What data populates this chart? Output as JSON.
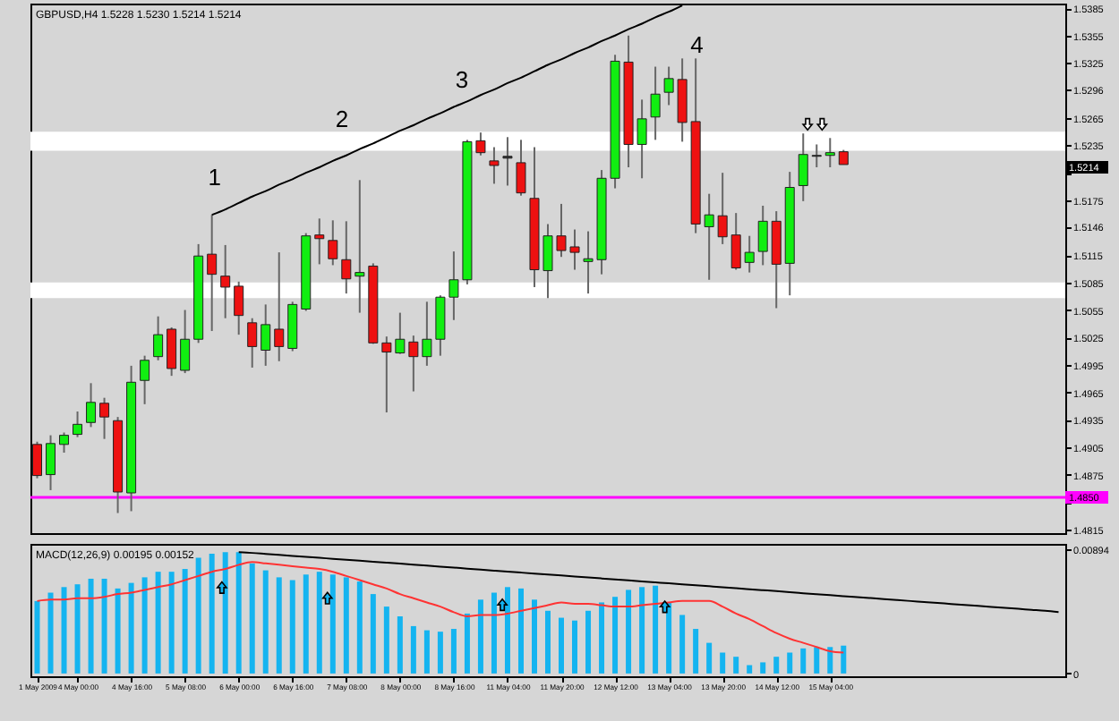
{
  "chart_data": [
    {
      "type": "candlestick",
      "title": "GBPUSD,H4 1.5228 1.5230 1.5214 1.5214",
      "categories": [
        null,
        null,
        null,
        null,
        null,
        null,
        null,
        null,
        null,
        null,
        null,
        null,
        null,
        null,
        null,
        null,
        null,
        null,
        null,
        null,
        null,
        null,
        null,
        null,
        null,
        null,
        null,
        null,
        null,
        null,
        null,
        null,
        null,
        null,
        null,
        null,
        null,
        null,
        null,
        null,
        null,
        null,
        null,
        null,
        null,
        null,
        null,
        null,
        null,
        null,
        null,
        null,
        null,
        null,
        null,
        null,
        null,
        null,
        null,
        null,
        null,
        null,
        null,
        null,
        null,
        null,
        null,
        null,
        null,
        null,
        null,
        null,
        null,
        null,
        null,
        null,
        null
      ],
      "ohlc": [
        [
          1.4908,
          1.4911,
          1.4871,
          1.4874
        ],
        [
          1.4875,
          1.4918,
          1.4858,
          1.4909
        ],
        [
          1.4908,
          1.4921,
          1.4899,
          1.4918
        ],
        [
          1.4919,
          1.4944,
          1.4916,
          1.493
        ],
        [
          1.4932,
          1.4975,
          1.4927,
          1.4954
        ],
        [
          1.4953,
          1.4959,
          1.4914,
          1.4938
        ],
        [
          1.4934,
          1.4938,
          1.4833,
          1.4856
        ],
        [
          1.4855,
          1.4994,
          1.4835,
          1.4976
        ],
        [
          1.4978,
          1.5005,
          1.4952,
          1.5
        ],
        [
          1.5004,
          1.5048,
          1.5,
          1.5028
        ],
        [
          1.5034,
          1.5036,
          1.4983,
          1.4991
        ],
        [
          1.4989,
          1.5055,
          1.4986,
          1.5023
        ],
        [
          1.5023,
          1.5127,
          1.5019,
          1.5114
        ],
        [
          1.5116,
          1.5159,
          1.5032,
          1.5094
        ],
        [
          1.5092,
          1.5126,
          1.5046,
          1.508
        ],
        [
          1.5081,
          1.5086,
          1.5028,
          1.5049
        ],
        [
          1.5041,
          1.5046,
          1.4992,
          1.5015
        ],
        [
          1.5011,
          1.5061,
          1.4994,
          1.5039
        ],
        [
          1.5034,
          1.5118,
          1.4999,
          1.5015
        ],
        [
          1.5013,
          1.5064,
          1.501,
          1.5061
        ],
        [
          1.5056,
          1.5139,
          1.5054,
          1.5136
        ],
        [
          1.5137,
          1.5155,
          1.5105,
          1.5133
        ],
        [
          1.5131,
          1.5153,
          1.5104,
          1.5111
        ],
        [
          1.511,
          1.5152,
          1.5073,
          1.5089
        ],
        [
          1.5092,
          1.5197,
          1.5052,
          1.5096
        ],
        [
          1.5103,
          1.5106,
          1.5018,
          1.5019
        ],
        [
          1.5019,
          1.5026,
          1.4943,
          1.5009
        ],
        [
          1.5008,
          1.5052,
          1.5007,
          1.5023
        ],
        [
          1.502,
          1.5027,
          1.4966,
          1.5004
        ],
        [
          1.5004,
          1.5064,
          1.4994,
          1.5023
        ],
        [
          1.5023,
          1.5071,
          1.5005,
          1.5069
        ],
        [
          1.5069,
          1.5119,
          1.5044,
          1.5088
        ],
        [
          1.5088,
          1.5241,
          1.5083,
          1.5239
        ],
        [
          1.524,
          1.5249,
          1.5224,
          1.5227
        ],
        [
          1.5218,
          1.5233,
          1.5193,
          1.5213
        ],
        [
          1.5223,
          1.5244,
          1.5191,
          1.5221
        ],
        [
          1.5216,
          1.5241,
          1.518,
          1.5183
        ],
        [
          1.5177,
          1.5233,
          1.508,
          1.5099
        ],
        [
          1.5098,
          1.5149,
          1.5068,
          1.5136
        ],
        [
          1.5136,
          1.5171,
          1.5113,
          1.512
        ],
        [
          1.5124,
          1.5143,
          1.5099,
          1.5118
        ],
        [
          1.5108,
          1.5141,
          1.5073,
          1.5111
        ],
        [
          1.511,
          1.5208,
          1.5094,
          1.5199
        ],
        [
          1.5199,
          1.5334,
          1.5188,
          1.5327
        ],
        [
          1.5326,
          1.5355,
          1.5211,
          1.5236
        ],
        [
          1.5236,
          1.5285,
          1.5199,
          1.5264
        ],
        [
          1.5266,
          1.5321,
          1.5241,
          1.5291
        ],
        [
          1.5293,
          1.5321,
          1.5279,
          1.5308
        ],
        [
          1.5307,
          1.533,
          1.5239,
          1.526
        ],
        [
          1.5261,
          1.533,
          1.5139,
          1.5149
        ],
        [
          1.5146,
          1.5182,
          1.5088,
          1.5159
        ],
        [
          1.5158,
          1.5205,
          1.5127,
          1.5135
        ],
        [
          1.5137,
          1.5161,
          1.5099,
          1.5101
        ],
        [
          1.5107,
          1.5136,
          1.5096,
          1.5118
        ],
        [
          1.5119,
          1.5169,
          1.5104,
          1.5152
        ],
        [
          1.5152,
          1.5163,
          1.5057,
          1.5105
        ],
        [
          1.5106,
          1.5206,
          1.5071,
          1.5189
        ],
        [
          1.5191,
          1.5248,
          1.5174,
          1.5225
        ],
        [
          1.5223,
          1.5236,
          1.5211,
          1.5224
        ],
        [
          1.5224,
          1.5243,
          1.5211,
          1.5227
        ],
        [
          1.5228,
          1.523,
          1.5214,
          1.5214
        ],
        null,
        null,
        null,
        null,
        null,
        null,
        null,
        null,
        null,
        null,
        null,
        null,
        null,
        null,
        null,
        null
      ],
      "colors": [
        "#ee1111",
        "#11ee11",
        "#11ee11",
        "#11ee11",
        "#11ee11",
        "#ee1111",
        "#ee1111",
        "#11ee11",
        "#11ee11",
        "#11ee11",
        "#ee1111",
        "#11ee11",
        "#11ee11",
        "#ee1111",
        "#ee1111",
        "#ee1111",
        "#ee1111",
        "#11ee11",
        "#ee1111",
        "#11ee11",
        "#11ee11",
        "#ee1111",
        "#ee1111",
        "#ee1111",
        "#11ee11",
        "#ee1111",
        "#ee1111",
        "#11ee11",
        "#ee1111",
        "#11ee11",
        "#11ee11",
        "#11ee11",
        "#11ee11",
        "#ee1111",
        "#ee1111",
        "#333333",
        "#ee1111",
        "#ee1111",
        "#11ee11",
        "#ee1111",
        "#ee1111",
        "#11ee11",
        "#11ee11",
        "#11ee11",
        "#ee1111",
        "#11ee11",
        "#11ee11",
        "#11ee11",
        "#ee1111",
        "#ee1111",
        "#11ee11",
        "#ee1111",
        "#ee1111",
        "#11ee11",
        "#11ee11",
        "#ee1111",
        "#11ee11",
        "#11ee11",
        "#333333",
        "#11ee11",
        "#ee1111",
        null,
        null,
        null,
        null,
        null,
        null,
        null,
        null,
        null,
        null,
        null,
        null,
        null,
        null,
        null,
        null
      ],
      "series": [
        {
          "type": "line",
          "color": "#000000",
          "values": [
            null,
            null,
            null,
            null,
            null,
            null,
            null,
            null,
            null,
            null,
            null,
            null,
            null,
            1.5159,
            1.5165,
            1.5172,
            1.5179,
            1.5185,
            1.5192,
            1.5198,
            1.5205,
            1.5211,
            1.5218,
            1.5224,
            1.5231,
            1.5237,
            1.5244,
            1.5251,
            1.5257,
            1.5264,
            1.527,
            1.5277,
            1.5283,
            1.529,
            1.5296,
            1.5303,
            1.5309,
            1.5316,
            1.5323,
            1.5329,
            1.5336,
            1.5342,
            1.5349,
            1.5355,
            1.5362,
            1.5368,
            1.5375,
            1.5381,
            1.5388,
            null,
            null,
            null,
            null,
            null,
            null,
            null,
            null,
            null,
            null,
            null,
            null,
            null,
            null,
            null,
            null,
            null,
            null,
            null,
            null,
            null,
            null,
            null,
            null,
            null,
            null,
            null,
            null
          ]
        }
      ],
      "ylim": [
        1.4811,
        1.539
      ],
      "yticks": [
        1.5385,
        1.5355,
        1.5325,
        1.5296,
        1.5265,
        1.5235,
        {
          "value": 1.5205,
          "label": null
        },
        1.5175,
        1.5146,
        1.5115,
        1.5085,
        1.5055,
        1.5025,
        1.4995,
        1.4965,
        1.4935,
        1.4905,
        1.4875,
        {
          "value": 1.4845,
          "label": null
        },
        1.4815
      ],
      "tick_labels": "y",
      "ref_lines": [
        {
          "axis": "y",
          "value": 1.485,
          "label": "1.4850",
          "color": "#ff00ff"
        }
      ],
      "bands": [
        {
          "axis": "y",
          "from": 1.5229,
          "to": 1.525,
          "color": "#ffffff"
        },
        {
          "axis": "y",
          "from": 1.5068,
          "to": 1.5085,
          "color": "#ffffff"
        }
      ],
      "annotations": [
        "1",
        "2",
        "3",
        "4",
        "1.5214"
      ]
    },
    {
      "type": "bar",
      "title": "MACD(12,26,9) 0.00195 0.00152",
      "categories": [
        "1 May 2009",
        null,
        null,
        "4 May 00:00",
        null,
        null,
        null,
        "4 May 16:00",
        null,
        null,
        null,
        "5 May 08:00",
        null,
        null,
        null,
        "6 May 00:00",
        null,
        null,
        null,
        "6 May 16:00",
        null,
        null,
        null,
        "7 May 08:00",
        null,
        null,
        null,
        "8 May 00:00",
        null,
        null,
        null,
        "8 May 16:00",
        null,
        null,
        null,
        "11 May 04:00",
        null,
        null,
        null,
        "11 May 20:00",
        null,
        null,
        null,
        "12 May 12:00",
        null,
        null,
        null,
        "13 May 04:00",
        null,
        null,
        null,
        "13 May 20:00",
        null,
        null,
        null,
        "14 May 12:00",
        null,
        null,
        null,
        "15 May 04:00",
        null,
        null,
        null,
        null,
        null,
        null,
        null,
        null,
        null,
        null,
        null,
        null,
        null,
        null,
        null,
        null,
        null
      ],
      "series": [
        {
          "color": "#14b4f0",
          "values": [
            0.0052,
            0.0058,
            0.0062,
            0.0064,
            0.0068,
            0.0068,
            0.0061,
            0.0065,
            0.0069,
            0.0073,
            0.0073,
            0.0075,
            0.0083,
            0.0086,
            0.0087,
            0.0087,
            0.0079,
            0.0074,
            0.0069,
            0.0067,
            0.0071,
            0.0073,
            0.0071,
            0.0069,
            0.0066,
            0.0057,
            0.0048,
            0.0041,
            0.0034,
            0.0031,
            0.003,
            0.0032,
            0.0043,
            0.0053,
            0.0058,
            0.0062,
            0.0061,
            0.0053,
            0.0045,
            0.004,
            0.0038,
            0.0045,
            0.0051,
            0.0055,
            0.006,
            0.0062,
            0.0063,
            0.0051,
            0.0042,
            0.0032,
            0.0022,
            0.0015,
            0.0012,
            0.0006,
            0.0008,
            0.0012,
            0.0015,
            0.0018,
            0.0019,
            0.0019,
            0.002,
            null,
            null,
            null,
            null,
            null,
            null,
            null,
            null,
            null,
            null,
            null,
            null,
            null,
            null,
            null,
            null
          ]
        },
        {
          "type": "line",
          "color": "#ff3333",
          "values": [
            0.0052,
            0.0053,
            0.0053,
            0.0054,
            0.0054,
            0.0055,
            0.0057,
            0.0058,
            0.006,
            0.0062,
            0.0064,
            0.0067,
            0.007,
            0.0073,
            0.0075,
            0.0078,
            0.008,
            0.0079,
            0.0078,
            0.0077,
            0.0076,
            0.0075,
            0.0073,
            0.007,
            0.0067,
            0.0064,
            0.0061,
            0.0057,
            0.0054,
            0.0051,
            0.0048,
            0.0044,
            0.0041,
            0.0042,
            0.0042,
            0.0043,
            0.0045,
            0.0047,
            0.0049,
            0.0051,
            0.005,
            0.005,
            0.0049,
            0.0048,
            0.0048,
            0.0049,
            0.005,
            0.0051,
            0.0052,
            0.0052,
            0.0052,
            0.0048,
            0.0043,
            0.0039,
            0.0034,
            0.0029,
            0.0025,
            0.0022,
            0.0019,
            0.0016,
            0.0015,
            null,
            null,
            null,
            null,
            null,
            null,
            null,
            null,
            null,
            null,
            null,
            null,
            null,
            null,
            null,
            null
          ]
        },
        {
          "type": "line",
          "color": "#000000",
          "values": [
            null,
            null,
            null,
            null,
            null,
            null,
            null,
            null,
            null,
            null,
            null,
            null,
            null,
            null,
            null,
            0.0087,
            0.00865,
            0.00858,
            0.00851,
            0.00844,
            0.00837,
            0.0083,
            0.00823,
            0.00816,
            0.00809,
            0.00802,
            0.00795,
            0.00788,
            0.00781,
            0.00774,
            0.00767,
            0.0076,
            0.00752,
            0.00745,
            0.00738,
            0.00731,
            0.00724,
            0.00717,
            0.0071,
            0.00703,
            0.00696,
            0.00689,
            0.00682,
            0.00675,
            0.00668,
            0.00661,
            0.00654,
            0.00647,
            0.0064,
            0.00633,
            0.00626,
            0.00619,
            0.00612,
            0.00605,
            0.00598,
            0.00591,
            0.00583,
            0.00576,
            0.00569,
            0.00562,
            0.00555,
            0.00548,
            0.00541,
            0.00534,
            0.00527,
            0.0052,
            0.00513,
            0.00506,
            0.00499,
            0.00492,
            0.00485,
            0.00478,
            0.00471,
            0.00464,
            0.00457,
            0.0045,
            0.0044
          ]
        }
      ],
      "ylim": [
        -0.0002,
        0.0093
      ],
      "yticks": [
        0,
        0.00894
      ]
    }
  ]
}
